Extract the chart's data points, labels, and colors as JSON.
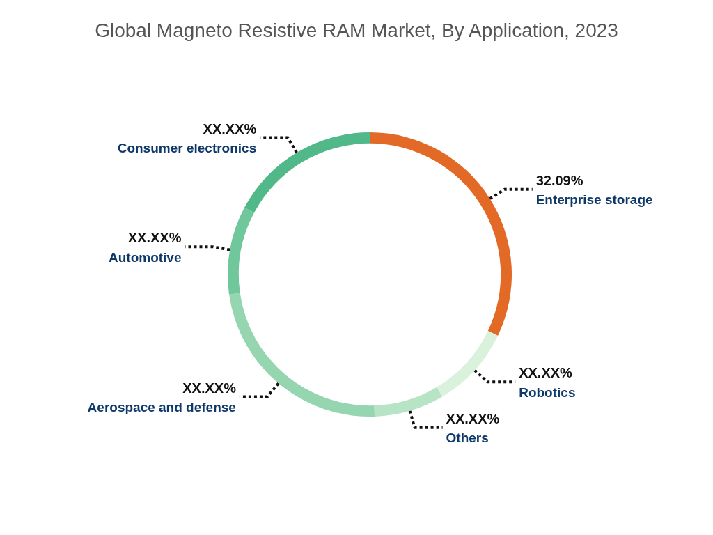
{
  "chart_data": {
    "type": "donut",
    "title": "Global Magneto Resistive RAM Market, By Application, 2023",
    "categories": [
      "Enterprise storage",
      "Robotics",
      "Others",
      "Aerospace and defense",
      "Automotive",
      "Consumer electronics"
    ],
    "values": [
      32.09,
      9.36,
      8.0,
      23.3,
      10.06,
      17.19
    ],
    "value_labels": [
      "32.09%",
      "XX.XX%",
      "XX.XX%",
      "XX.XX%",
      "XX.XX%",
      "XX.XX%"
    ],
    "colors": [
      "#e36a26",
      "#daf2dc",
      "#b7e4c4",
      "#95d6b1",
      "#6fc79b",
      "#50b889"
    ],
    "legend": false
  }
}
